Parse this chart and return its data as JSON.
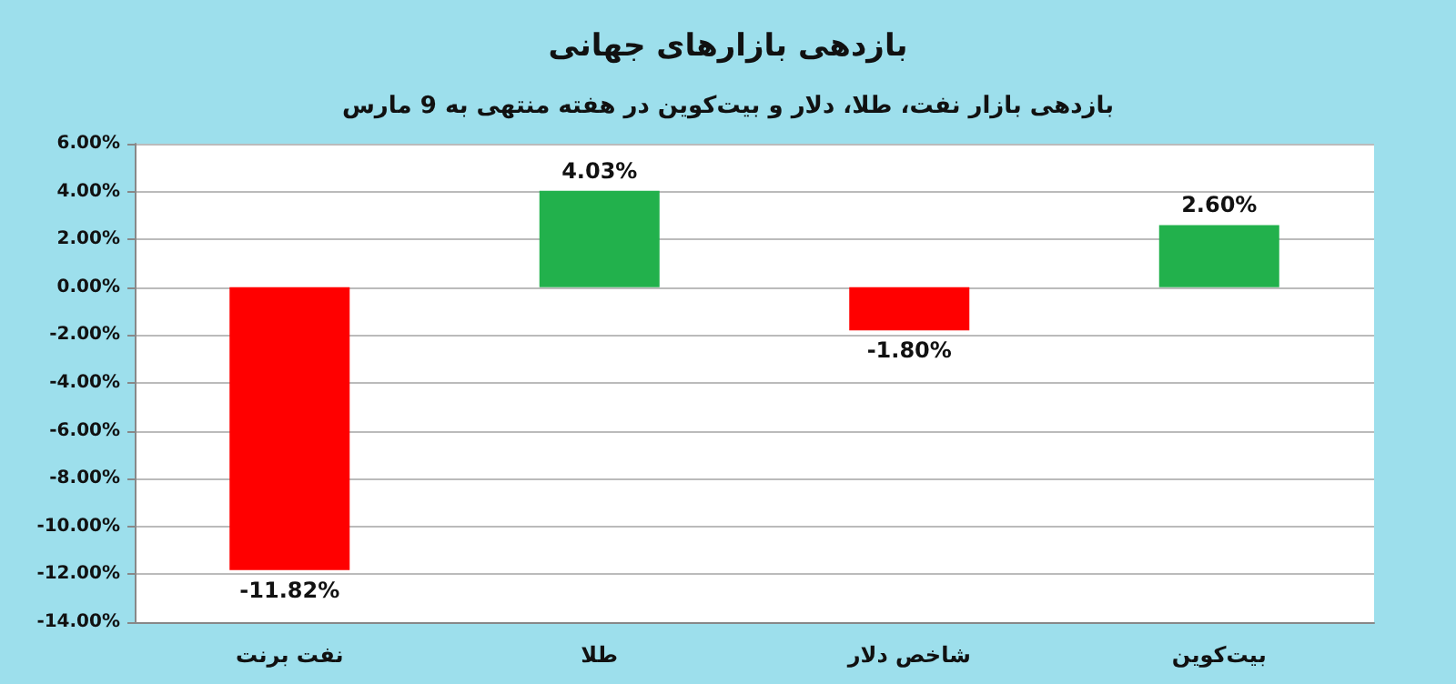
{
  "chart_data": {
    "type": "bar",
    "title": "بازدهی بازارهای جهانی",
    "subtitle": "بازدهی بازار نفت، طلا، دلار و بیت‌کوین در هفته منتهی به 9 مارس",
    "categories": [
      "نفت برنت",
      "طلا",
      "شاخص دلار",
      "بیت‌کوین"
    ],
    "values": [
      -11.82,
      4.03,
      -1.8,
      2.6
    ],
    "colors": [
      "#ff0000",
      "#22b14c",
      "#ff0000",
      "#22b14c"
    ],
    "value_labels": [
      "-11.82%",
      "4.03%",
      "-1.80%",
      "2.60%"
    ],
    "ylim": [
      -14,
      6
    ],
    "yticks": [
      {
        "value": -14,
        "label": "-14.00%"
      },
      {
        "value": -12,
        "label": "-12.00%"
      },
      {
        "value": -10,
        "label": "-10.00%"
      },
      {
        "value": -8,
        "label": "-8.00%"
      },
      {
        "value": -6,
        "label": "-6.00%"
      },
      {
        "value": -4,
        "label": "-4.00%"
      },
      {
        "value": -2,
        "label": "-2.00%"
      },
      {
        "value": 0,
        "label": "0.00%"
      },
      {
        "value": 2,
        "label": "2.00%"
      },
      {
        "value": 4,
        "label": "4.00%"
      },
      {
        "value": 6,
        "label": "6.00%"
      }
    ],
    "grid": "y"
  }
}
